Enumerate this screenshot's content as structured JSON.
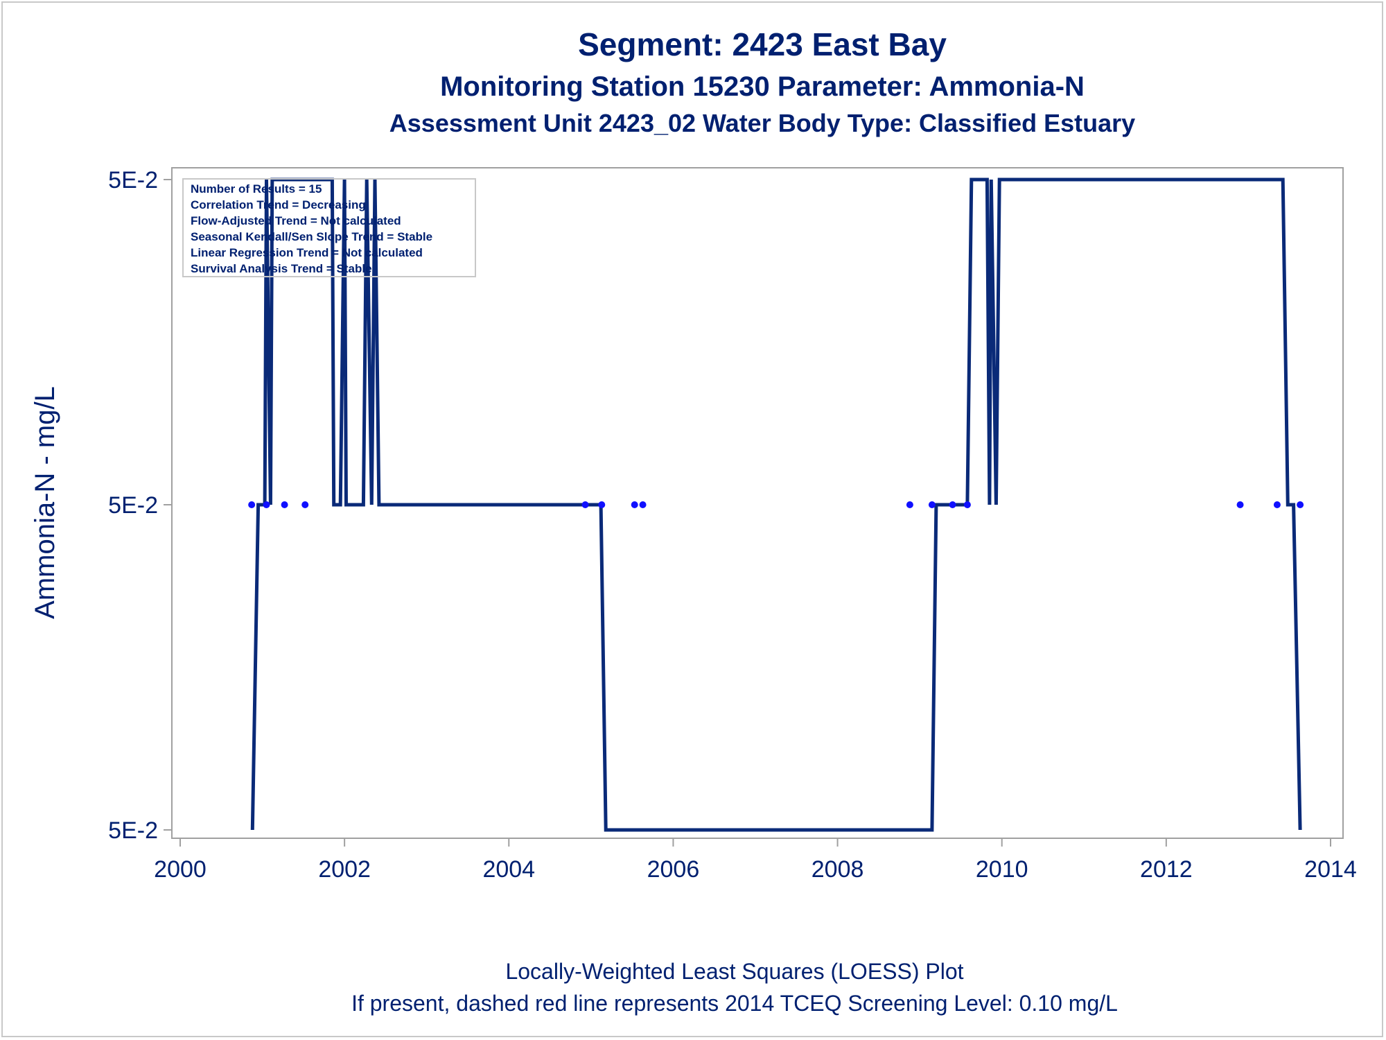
{
  "titles": {
    "line1": "Segment: 2423  East Bay",
    "line2": "Monitoring Station 15230 Parameter: Ammonia-N",
    "line3": "Assessment Unit 2423_02   Water Body Type: Classified Estuary"
  },
  "footnotes": {
    "line1": "Locally-Weighted Least Squares (LOESS) Plot",
    "line2": "If present, dashed red line represents 2014 TCEQ Screening Level: 0.10 mg/L"
  },
  "stats_box": {
    "lines": [
      "Number of Results = 15",
      "Correlation Trend = Decreasing",
      "Flow-Adjusted Trend = Not calculated",
      "Seasonal Kendall/Sen Slope Trend = Stable",
      "Linear Regression Trend = Not calculated",
      "Survival Analysis Trend = Stable"
    ]
  },
  "colors": {
    "text": "#002070",
    "loess_line": "#0a2a78",
    "points": "#1010ff",
    "frame": "#a0a0a0"
  },
  "chart_data": {
    "type": "line",
    "xlabel": "",
    "ylabel": "Ammonia-N - mg/L",
    "xlim": [
      2000,
      2014
    ],
    "x_ticks": [
      "2000",
      "2002",
      "2004",
      "2006",
      "2008",
      "2010",
      "2012",
      "2014"
    ],
    "y_ticks": [
      "5E-2",
      "5E-2",
      "5E-2"
    ],
    "y_levels_note": "three y tick labels all print 5E-2; values below are in tick-level units 0 (bottom), 1 (middle), 2 (top)",
    "grid": false,
    "series": [
      {
        "style": "scatter",
        "x": [
          2000.87,
          2001.05,
          2001.27,
          2001.52,
          2004.93,
          2005.13,
          2005.53,
          2005.63,
          2008.88,
          2009.15,
          2009.4,
          2009.58,
          2012.9,
          2013.35,
          2013.63
        ],
        "y": [
          1,
          1,
          1,
          1,
          1,
          1,
          1,
          1,
          1,
          1,
          1,
          1,
          1,
          1,
          1
        ]
      },
      {
        "style": "line",
        "x": [
          2000.88,
          2000.95,
          2001.03,
          2001.05,
          2001.1,
          2001.12,
          2001.85,
          2001.87,
          2001.95,
          2002.0,
          2002.02,
          2002.07,
          2002.23,
          2002.27,
          2002.33,
          2002.37,
          2002.42,
          2002.45,
          2005.12,
          2005.18,
          2009.15,
          2009.2,
          2009.58,
          2009.63,
          2009.82,
          2009.85,
          2009.87,
          2009.93,
          2009.97,
          2010.03,
          2013.42,
          2013.48,
          2013.55,
          2013.63
        ],
        "y": [
          0,
          1,
          1,
          2,
          1,
          2,
          2,
          1,
          1,
          2,
          1,
          1,
          1,
          2,
          1,
          2,
          1,
          1,
          1,
          0,
          0,
          1,
          1,
          2,
          2,
          1,
          2,
          1,
          2,
          2,
          2,
          1,
          1,
          0
        ]
      }
    ]
  }
}
